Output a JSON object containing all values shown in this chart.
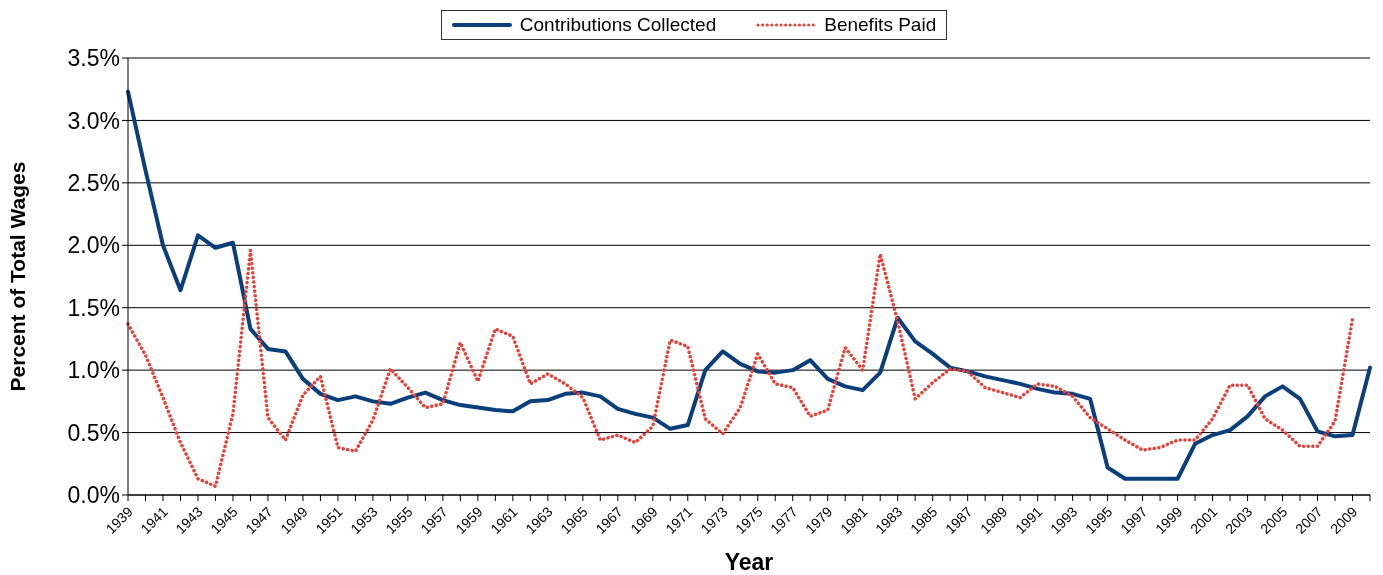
{
  "chart_data": {
    "type": "line",
    "xlabel": "Year",
    "ylabel": "Percent of Total Wages",
    "categories": [
      "1939",
      null,
      "1941",
      null,
      "1943",
      null,
      "1945",
      null,
      "1947",
      null,
      "1949",
      null,
      "1951",
      null,
      "1953",
      null,
      "1955",
      null,
      "1957",
      null,
      "1959",
      null,
      "1961",
      null,
      "1963",
      null,
      "1965",
      null,
      "1967",
      null,
      "1969",
      null,
      "1971",
      null,
      "1973",
      null,
      "1975",
      null,
      "1977",
      null,
      "1979",
      null,
      "1981",
      null,
      "1983",
      null,
      "1985",
      null,
      "1987",
      null,
      "1989",
      null,
      "1991",
      null,
      "1993",
      null,
      "1995",
      null,
      "1997",
      null,
      "1999",
      null,
      "2001",
      null,
      "2003",
      null,
      "2005",
      null,
      "2007",
      null,
      "2009",
      null
    ],
    "series": [
      {
        "name": "Contributions Collected",
        "color": "#0a3f7a",
        "line_style": "solid",
        "values": [
          3.23,
          2.6,
          2.0,
          1.64,
          2.08,
          1.98,
          2.02,
          1.33,
          1.17,
          1.15,
          0.93,
          0.81,
          0.76,
          0.79,
          0.75,
          0.73,
          0.78,
          0.82,
          0.76,
          0.72,
          0.7,
          0.68,
          0.67,
          0.75,
          0.76,
          0.81,
          0.82,
          0.79,
          0.69,
          0.65,
          0.62,
          0.53,
          0.56,
          1.0,
          1.15,
          1.05,
          0.99,
          0.98,
          1.0,
          1.08,
          0.93,
          0.87,
          0.84,
          0.98,
          1.42,
          1.23,
          1.13,
          1.02,
          0.99,
          0.95,
          0.92,
          0.89,
          0.85,
          0.82,
          0.81,
          0.77,
          0.22,
          0.13,
          0.13,
          0.13,
          0.13,
          0.41,
          0.48,
          0.52,
          0.63,
          0.79,
          0.87,
          0.77,
          0.51,
          0.47,
          0.48,
          1.02
        ]
      },
      {
        "name": "Benefits Paid",
        "color": "#e8413a",
        "line_style": "dotted",
        "values": [
          1.37,
          1.12,
          0.78,
          0.42,
          0.13,
          0.07,
          0.65,
          1.96,
          0.62,
          0.44,
          0.8,
          0.95,
          0.38,
          0.35,
          0.6,
          1.01,
          0.86,
          0.7,
          0.73,
          1.22,
          0.91,
          1.33,
          1.27,
          0.89,
          0.97,
          0.89,
          0.78,
          0.44,
          0.48,
          0.42,
          0.55,
          1.24,
          1.19,
          0.61,
          0.49,
          0.7,
          1.13,
          0.89,
          0.86,
          0.63,
          0.68,
          1.18,
          1.0,
          1.93,
          1.39,
          0.77,
          0.9,
          1.01,
          0.99,
          0.86,
          0.82,
          0.78,
          0.89,
          0.87,
          0.79,
          0.62,
          0.53,
          0.44,
          0.36,
          0.38,
          0.44,
          0.44,
          0.61,
          0.88,
          0.88,
          0.61,
          0.52,
          0.39,
          0.39,
          0.59,
          1.41,
          null
        ]
      }
    ],
    "ylim": [
      0,
      3.5
    ],
    "yticks": [
      {
        "value": 0,
        "label": "0.0%"
      },
      {
        "value": 0.5,
        "label": "0.5%"
      },
      {
        "value": 1,
        "label": "1.0%"
      },
      {
        "value": 1.5,
        "label": "1.5%"
      },
      {
        "value": 2,
        "label": "2.0%"
      },
      {
        "value": 2.5,
        "label": "2.5%"
      },
      {
        "value": 3,
        "label": "3.0%"
      },
      {
        "value": 3.5,
        "label": "3.5%"
      }
    ],
    "grid": "y",
    "legend": "top",
    "marker": "none"
  }
}
